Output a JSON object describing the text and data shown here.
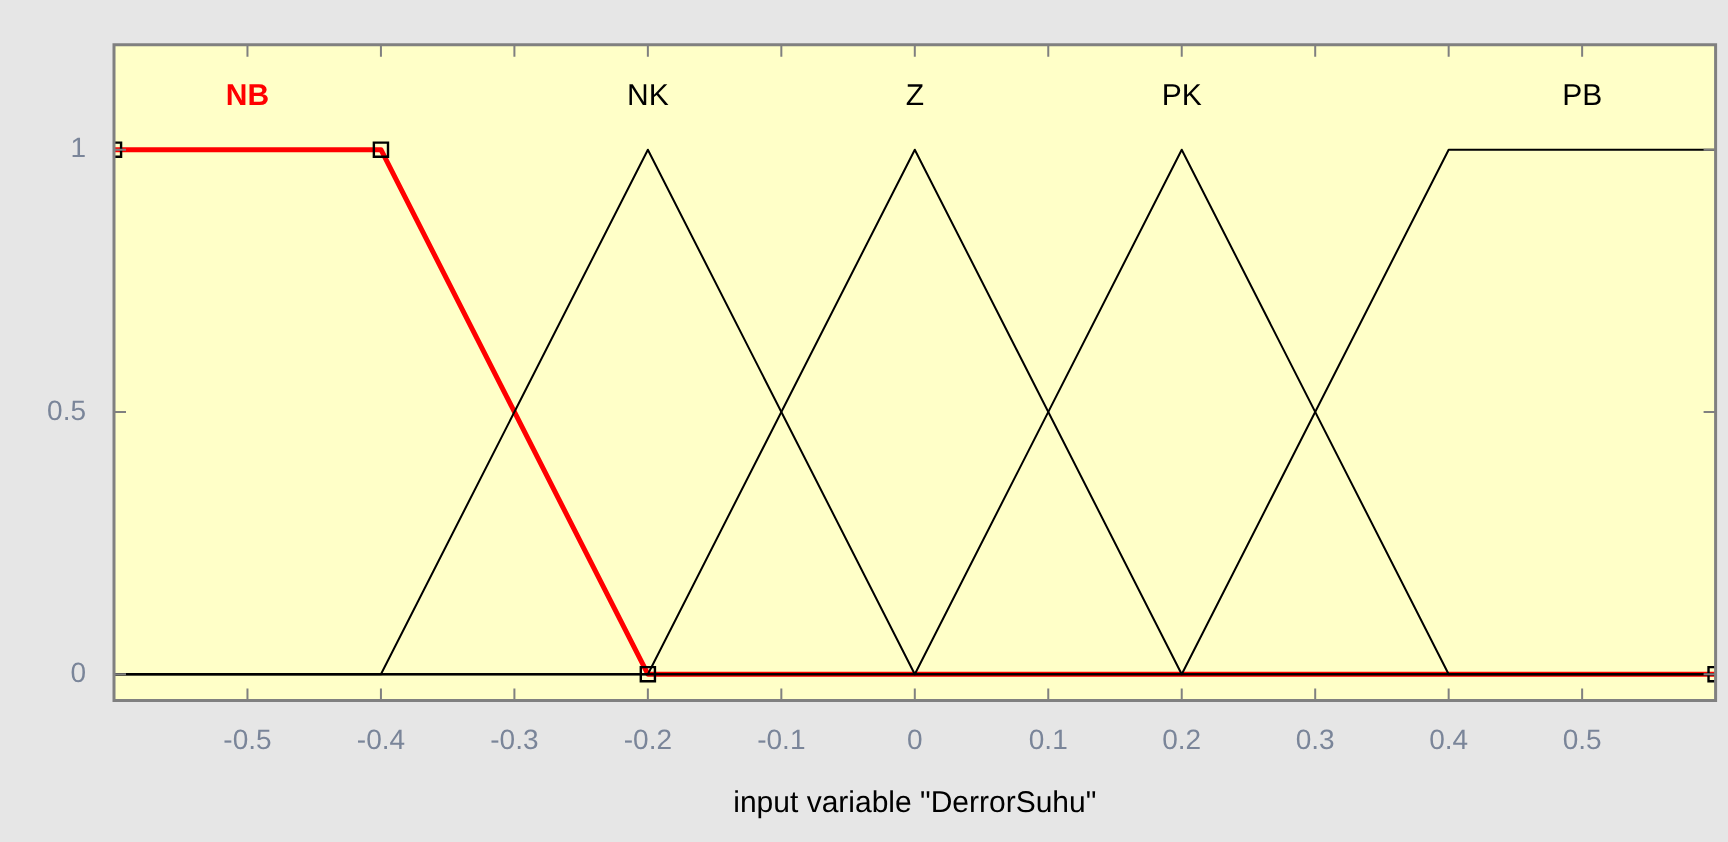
{
  "chart_data": {
    "type": "line",
    "xlabel": "input variable \"DerrorSuhu\"",
    "xlim": [
      -0.6,
      0.6
    ],
    "xticks": [
      -0.5,
      -0.4,
      -0.3,
      -0.2,
      -0.1,
      0,
      0.1,
      0.2,
      0.3,
      0.4,
      0.5
    ],
    "ylim": [
      -0.05,
      1.2
    ],
    "yticks": [
      0,
      0.5,
      1
    ],
    "grid": false,
    "legend": false,
    "marker": "none",
    "line_style": "solid",
    "series": [
      {
        "name": "NK",
        "color": "#000000",
        "x": [
          -0.6,
          -0.4,
          -0.2,
          0,
          0.6
        ],
        "values": [
          0,
          0,
          1,
          0,
          0
        ]
      },
      {
        "name": "Z",
        "color": "#000000",
        "x": [
          -0.6,
          -0.2,
          0,
          0.2,
          0.6
        ],
        "values": [
          0,
          0,
          1,
          0,
          0
        ]
      },
      {
        "name": "PK",
        "color": "#000000",
        "x": [
          -0.6,
          0,
          0.2,
          0.4,
          0.6
        ],
        "values": [
          0,
          0,
          1,
          0,
          0
        ]
      },
      {
        "name": "PB",
        "color": "#000000",
        "x": [
          -0.6,
          0.2,
          0.4,
          0.6
        ],
        "values": [
          0,
          0,
          1,
          1
        ]
      },
      {
        "name": "NB",
        "color": "#ff0000",
        "x": [
          -0.6,
          -0.4,
          -0.2,
          0.6
        ],
        "values": [
          1,
          1,
          0,
          0
        ],
        "marker": "square"
      }
    ]
  }
}
